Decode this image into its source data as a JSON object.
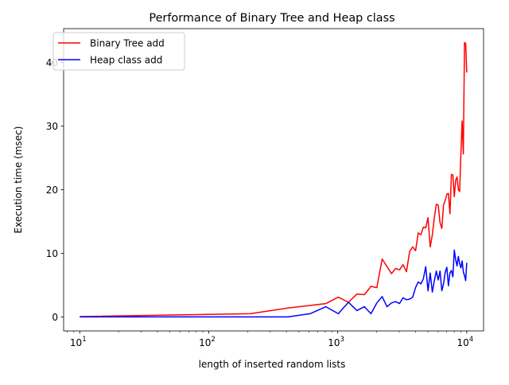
{
  "chart_data": {
    "type": "line",
    "title": "Performance of Binary Tree and Heap class",
    "xlabel": "length of inserted random lists",
    "ylabel": "Execution time (msec)",
    "x_scale": "log",
    "xlim": [
      7.5,
      13500
    ],
    "ylim": [
      -2.2,
      45.3
    ],
    "x_ticks": [
      {
        "value": 10,
        "base": "10",
        "exp": "1"
      },
      {
        "value": 100,
        "base": "10",
        "exp": "2"
      },
      {
        "value": 1000,
        "base": "10",
        "exp": "3"
      },
      {
        "value": 10000,
        "base": "10",
        "exp": "4"
      }
    ],
    "y_ticks": [
      0,
      10,
      20,
      30,
      40
    ],
    "grid": false,
    "legend_position": "upper-left",
    "series": [
      {
        "name": "Binary Tree add",
        "color": "#ff0000",
        "x": [
          10,
          210,
          410,
          610,
          810,
          1010,
          1210,
          1410,
          1610,
          1810,
          2010,
          2210,
          2410,
          2610,
          2810,
          3010,
          3210,
          3410,
          3610,
          3810,
          4010,
          4210,
          4410,
          4610,
          4810,
          5010,
          5210,
          5410,
          5610,
          5810,
          6010,
          6210,
          6410,
          6610,
          6810,
          7010,
          7210,
          7410,
          7610,
          7810,
          8010,
          8210,
          8410,
          8610,
          8810,
          9010,
          9210,
          9410,
          9610,
          9810,
          10000
        ],
        "y": [
          0.05,
          0.5,
          1.4,
          1.8,
          2.1,
          3.1,
          2.3,
          3.6,
          3.5,
          4.8,
          4.6,
          9.1,
          7.9,
          6.8,
          7.6,
          7.4,
          8.2,
          7.1,
          10.3,
          11.0,
          10.4,
          13.2,
          12.9,
          14.1,
          14.0,
          15.6,
          11.0,
          12.9,
          15.6,
          17.7,
          17.6,
          14.8,
          13.9,
          17.6,
          18.3,
          19.3,
          19.4,
          16.2,
          22.4,
          22.3,
          18.9,
          21.5,
          22.0,
          20.0,
          19.7,
          25.7,
          30.8,
          25.6,
          43.1,
          43.0,
          38.4
        ]
      },
      {
        "name": "Heap class add",
        "color": "#0000ff",
        "x": [
          10,
          210,
          410,
          610,
          810,
          1010,
          1210,
          1410,
          1610,
          1810,
          2010,
          2210,
          2410,
          2610,
          2810,
          3010,
          3210,
          3410,
          3610,
          3810,
          4010,
          4210,
          4410,
          4610,
          4810,
          5010,
          5210,
          5410,
          5610,
          5810,
          6010,
          6210,
          6410,
          6610,
          6810,
          7010,
          7210,
          7410,
          7610,
          7810,
          8010,
          8210,
          8410,
          8610,
          8810,
          9010,
          9210,
          9410,
          9610,
          9810,
          10000
        ],
        "y": [
          0.0,
          0.0,
          0.0,
          0.5,
          1.6,
          0.5,
          2.3,
          1.0,
          1.6,
          0.5,
          2.2,
          3.2,
          1.6,
          2.2,
          2.4,
          2.1,
          3.0,
          2.7,
          2.8,
          3.1,
          4.6,
          5.5,
          5.2,
          6.0,
          7.9,
          4.1,
          6.9,
          3.9,
          5.7,
          7.2,
          5.8,
          7.2,
          4.1,
          5.2,
          7.0,
          7.8,
          4.9,
          6.9,
          7.3,
          6.3,
          10.5,
          9.0,
          8.0,
          9.5,
          8.4,
          7.7,
          8.8,
          7.1,
          6.5,
          5.7,
          8.5
        ]
      }
    ]
  }
}
